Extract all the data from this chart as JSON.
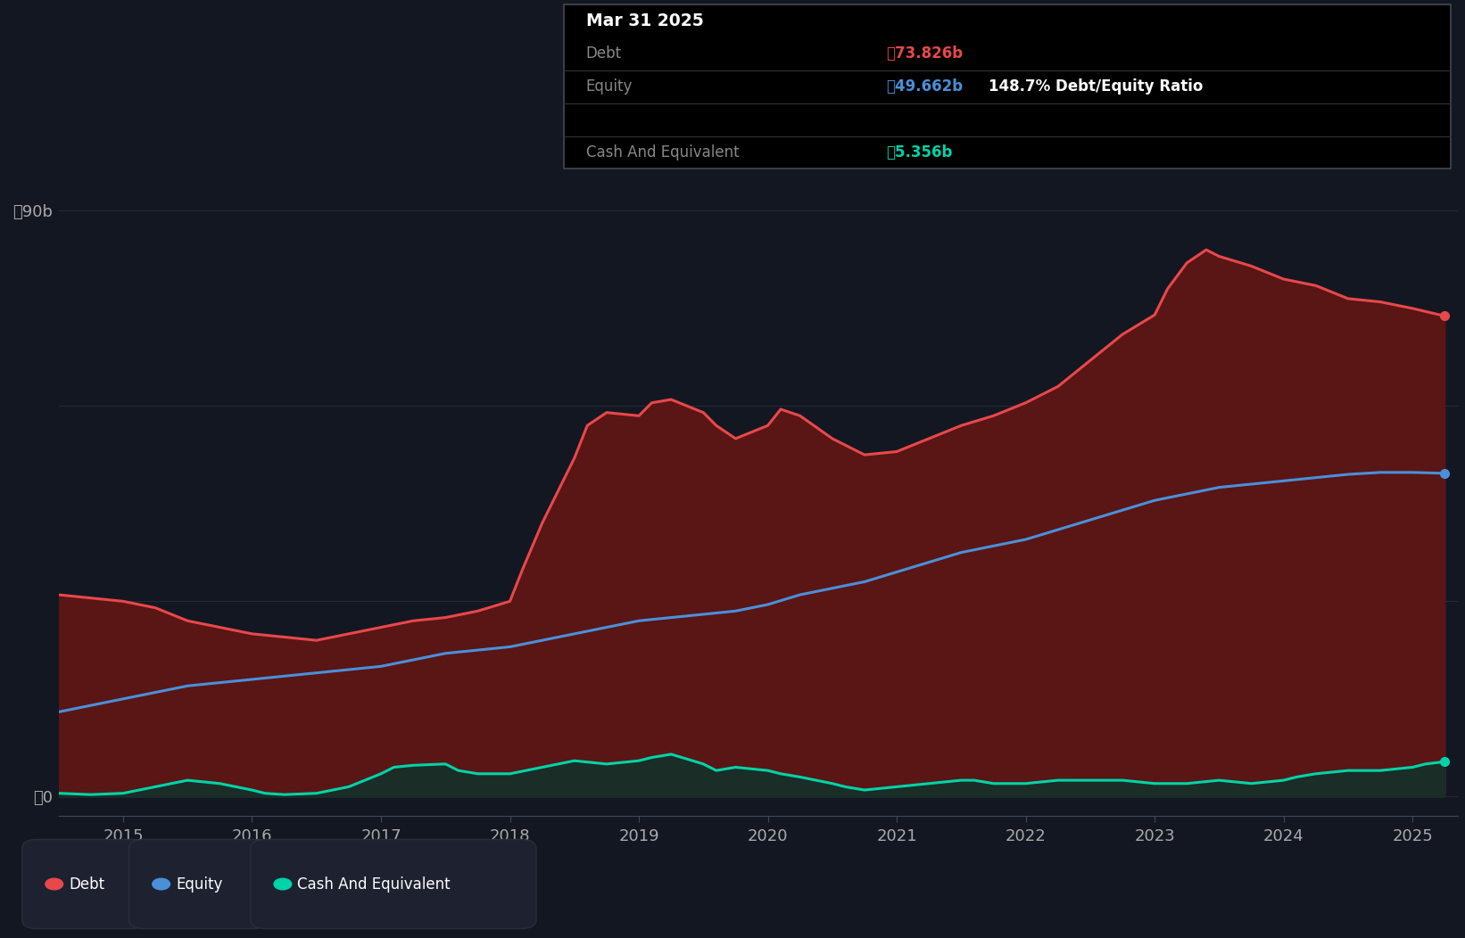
{
  "background_color": "#131722",
  "plot_bg_color": "#131722",
  "grid_color": "#2a2e39",
  "title_box": {
    "date": "Mar 31 2025",
    "debt_label": "Debt",
    "debt_value": "ื73.826b",
    "equity_label": "Equity",
    "equity_value": "ื49.662b",
    "ratio_text": "148.7% Debt/Equity Ratio",
    "cash_label": "Cash And Equivalent",
    "cash_value": "ื5.356b",
    "bg_color": "#000000",
    "border_color": "#444950",
    "debt_color": "#e8484a",
    "equity_color": "#4a90d9",
    "cash_color": "#00d4a8",
    "ratio_color": "#ffffff"
  },
  "debt_color": "#e8484a",
  "debt_fill": "#5a1515",
  "equity_color": "#4a90d9",
  "equity_fill": "#1a2a4a",
  "cash_color": "#00d4a8",
  "cash_fill": "#003830",
  "line_width": 2.2,
  "ylim": [
    -3,
    95
  ],
  "xlim_min": 2014.5,
  "xlim_max": 2025.35,
  "debt_x": [
    2014.5,
    2014.75,
    2015.0,
    2015.25,
    2015.5,
    2015.75,
    2016.0,
    2016.25,
    2016.5,
    2016.75,
    2017.0,
    2017.25,
    2017.5,
    2017.75,
    2018.0,
    2018.1,
    2018.25,
    2018.5,
    2018.6,
    2018.75,
    2019.0,
    2019.1,
    2019.25,
    2019.5,
    2019.6,
    2019.75,
    2020.0,
    2020.1,
    2020.25,
    2020.5,
    2020.75,
    2021.0,
    2021.25,
    2021.5,
    2021.75,
    2022.0,
    2022.25,
    2022.5,
    2022.75,
    2023.0,
    2023.1,
    2023.25,
    2023.4,
    2023.5,
    2023.75,
    2024.0,
    2024.25,
    2024.5,
    2024.75,
    2025.0,
    2025.25
  ],
  "debt_y": [
    31.0,
    30.5,
    30.0,
    29.0,
    27.0,
    26.0,
    25.0,
    24.5,
    24.0,
    25.0,
    26.0,
    27.0,
    27.5,
    28.5,
    30.0,
    35.0,
    42.0,
    52.0,
    57.0,
    59.0,
    58.5,
    60.5,
    61.0,
    59.0,
    57.0,
    55.0,
    57.0,
    59.5,
    58.5,
    55.0,
    52.5,
    53.0,
    55.0,
    57.0,
    58.5,
    60.5,
    63.0,
    67.0,
    71.0,
    74.0,
    78.0,
    82.0,
    84.0,
    83.0,
    81.5,
    79.5,
    78.5,
    76.5,
    76.0,
    75.0,
    73.826
  ],
  "equity_x": [
    2014.5,
    2014.75,
    2015.0,
    2015.25,
    2015.5,
    2015.75,
    2016.0,
    2016.25,
    2016.5,
    2016.75,
    2017.0,
    2017.25,
    2017.5,
    2017.75,
    2018.0,
    2018.25,
    2018.5,
    2018.75,
    2019.0,
    2019.25,
    2019.5,
    2019.75,
    2020.0,
    2020.25,
    2020.5,
    2020.75,
    2021.0,
    2021.25,
    2021.5,
    2021.75,
    2022.0,
    2022.25,
    2022.5,
    2022.75,
    2023.0,
    2023.25,
    2023.5,
    2023.75,
    2024.0,
    2024.25,
    2024.5,
    2024.75,
    2025.0,
    2025.25
  ],
  "equity_y": [
    13.0,
    14.0,
    15.0,
    16.0,
    17.0,
    17.5,
    18.0,
    18.5,
    19.0,
    19.5,
    20.0,
    21.0,
    22.0,
    22.5,
    23.0,
    24.0,
    25.0,
    26.0,
    27.0,
    27.5,
    28.0,
    28.5,
    29.5,
    31.0,
    32.0,
    33.0,
    34.5,
    36.0,
    37.5,
    38.5,
    39.5,
    41.0,
    42.5,
    44.0,
    45.5,
    46.5,
    47.5,
    48.0,
    48.5,
    49.0,
    49.5,
    49.8,
    49.8,
    49.662
  ],
  "cash_x": [
    2014.5,
    2014.75,
    2015.0,
    2015.25,
    2015.5,
    2015.75,
    2016.0,
    2016.1,
    2016.25,
    2016.5,
    2016.75,
    2017.0,
    2017.1,
    2017.25,
    2017.5,
    2017.6,
    2017.75,
    2018.0,
    2018.25,
    2018.5,
    2018.75,
    2019.0,
    2019.1,
    2019.25,
    2019.5,
    2019.6,
    2019.75,
    2020.0,
    2020.1,
    2020.25,
    2020.5,
    2020.6,
    2020.75,
    2021.0,
    2021.25,
    2021.5,
    2021.6,
    2021.75,
    2022.0,
    2022.25,
    2022.5,
    2022.75,
    2023.0,
    2023.25,
    2023.5,
    2023.75,
    2024.0,
    2024.1,
    2024.25,
    2024.5,
    2024.75,
    2025.0,
    2025.1,
    2025.25
  ],
  "cash_y": [
    0.5,
    0.3,
    0.5,
    1.5,
    2.5,
    2.0,
    1.0,
    0.5,
    0.3,
    0.5,
    1.5,
    3.5,
    4.5,
    4.8,
    5.0,
    4.0,
    3.5,
    3.5,
    4.5,
    5.5,
    5.0,
    5.5,
    6.0,
    6.5,
    5.0,
    4.0,
    4.5,
    4.0,
    3.5,
    3.0,
    2.0,
    1.5,
    1.0,
    1.5,
    2.0,
    2.5,
    2.5,
    2.0,
    2.0,
    2.5,
    2.5,
    2.5,
    2.0,
    2.0,
    2.5,
    2.0,
    2.5,
    3.0,
    3.5,
    4.0,
    4.0,
    4.5,
    5.0,
    5.356
  ],
  "legend": [
    {
      "label": "Debt",
      "color": "#e8484a"
    },
    {
      "label": "Equity",
      "color": "#4a90d9"
    },
    {
      "label": "Cash And Equivalent",
      "color": "#00d4a8"
    }
  ]
}
